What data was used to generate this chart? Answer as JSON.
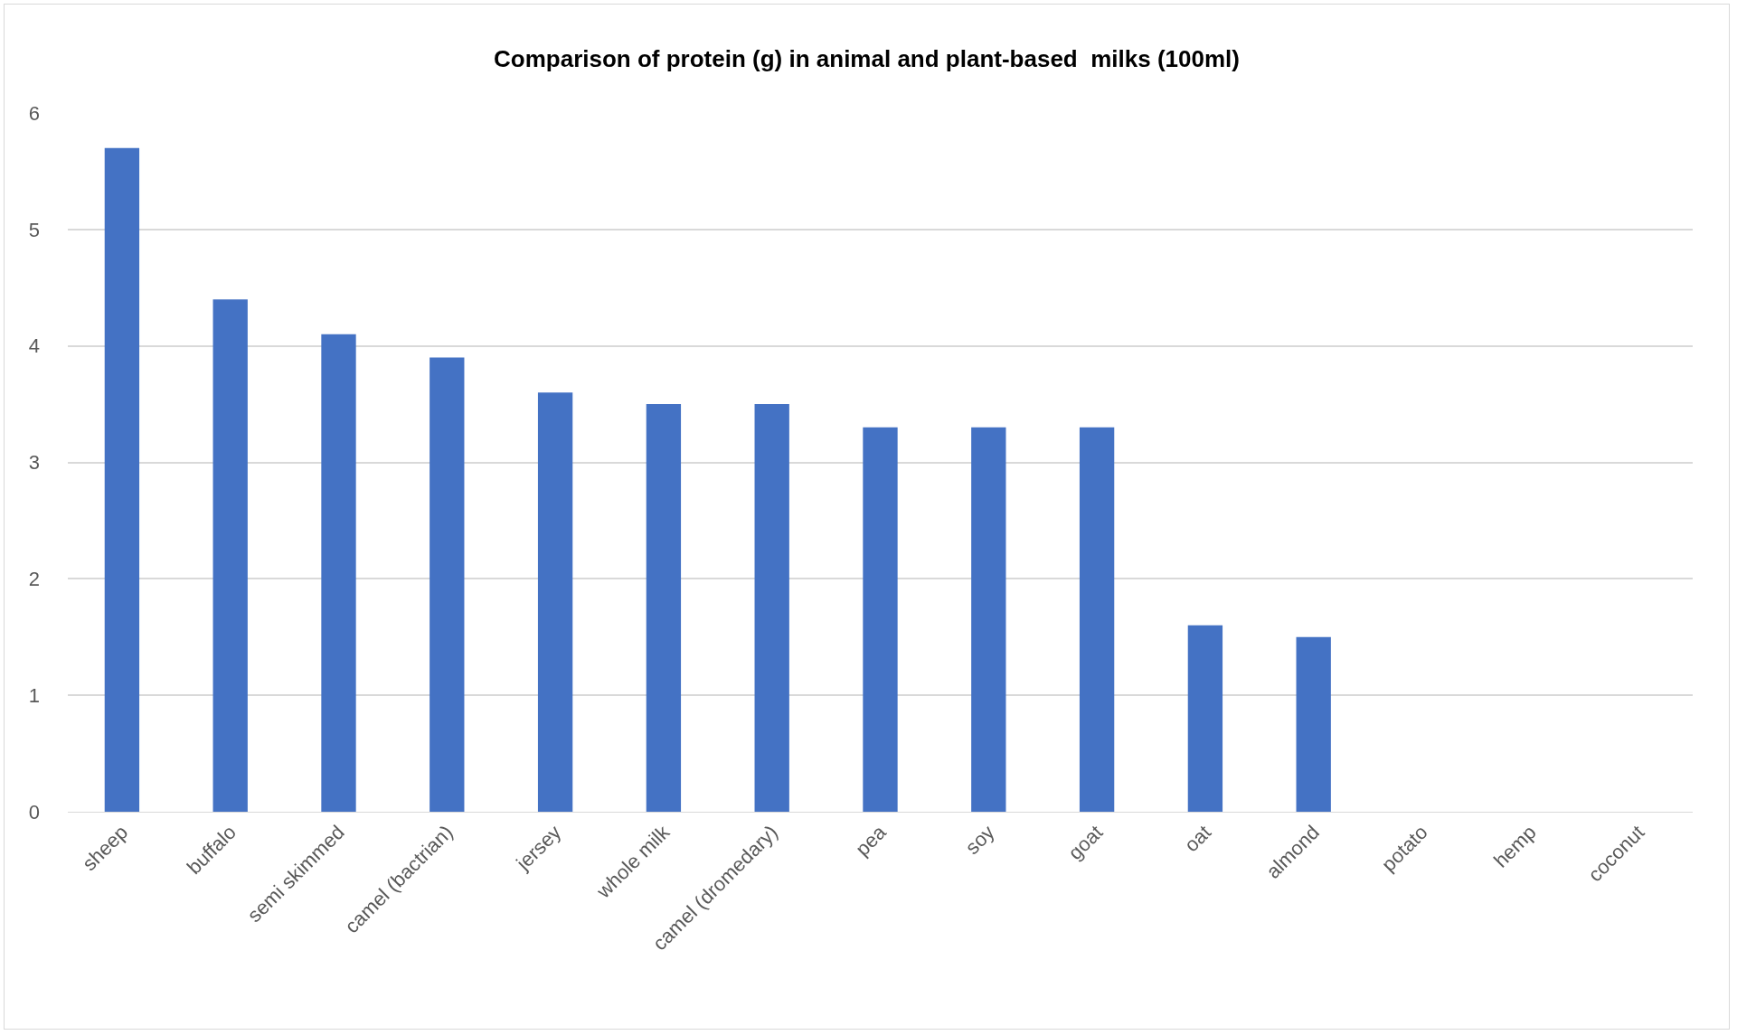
{
  "chart_data": {
    "type": "bar",
    "title": "Comparison of protein (g) in animal and plant-based  milks (100ml)",
    "categories": [
      "sheep",
      "buffalo",
      "semi skimmed",
      "camel (bactrian)",
      "jersey",
      "whole milk",
      "camel (dromedary)",
      "pea",
      "soy",
      "goat",
      "oat",
      "almond",
      "potato",
      "hemp",
      "coconut"
    ],
    "values": [
      5.7,
      4.4,
      4.1,
      3.9,
      3.6,
      3.5,
      3.5,
      3.3,
      3.3,
      3.3,
      1.6,
      1.5,
      0,
      0,
      0
    ],
    "color": "#4472c4",
    "ylim": [
      0,
      6
    ],
    "yticks": [
      0,
      1,
      2,
      3,
      4,
      5,
      6
    ],
    "grid": "y"
  }
}
